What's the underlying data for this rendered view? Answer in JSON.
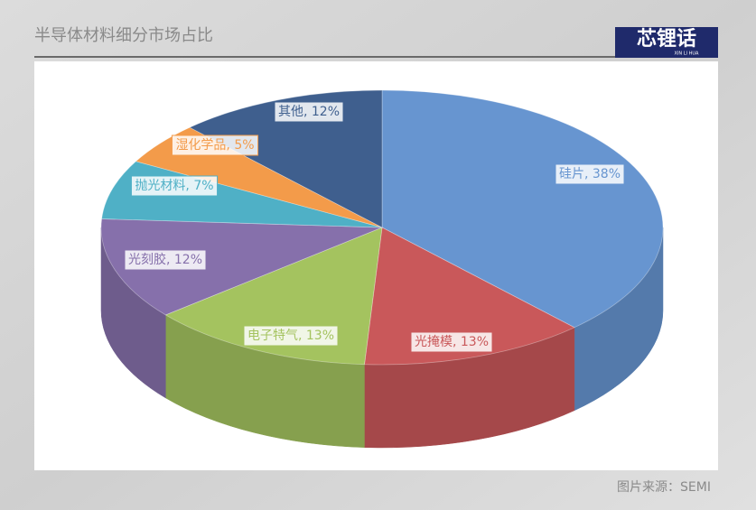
{
  "chart_data": {
    "type": "pie3d",
    "title": "半导体材料细分市场占比",
    "categories": [
      "硅片",
      "光掩模",
      "电子特气",
      "光刻胶",
      "抛光材料",
      "湿化学品",
      "其他"
    ],
    "values": [
      38,
      13,
      13,
      12,
      7,
      5,
      12
    ],
    "value_labels": [
      "硅片, 38%",
      "光掩模, 13%",
      "电子特气, 13%",
      "光刻胶, 12%",
      "抛光材料, 7%",
      "湿化学品, 5%",
      "其他, 12%"
    ],
    "colors": [
      "#6795d0",
      "#c9585a",
      "#a4c35f",
      "#8670ab",
      "#4fb0c6",
      "#f39b4a",
      "#3f5f8e"
    ]
  },
  "logo": "芯锂话",
  "logo_sub": "XIN LI HUA",
  "source": "图片来源：SEMI"
}
